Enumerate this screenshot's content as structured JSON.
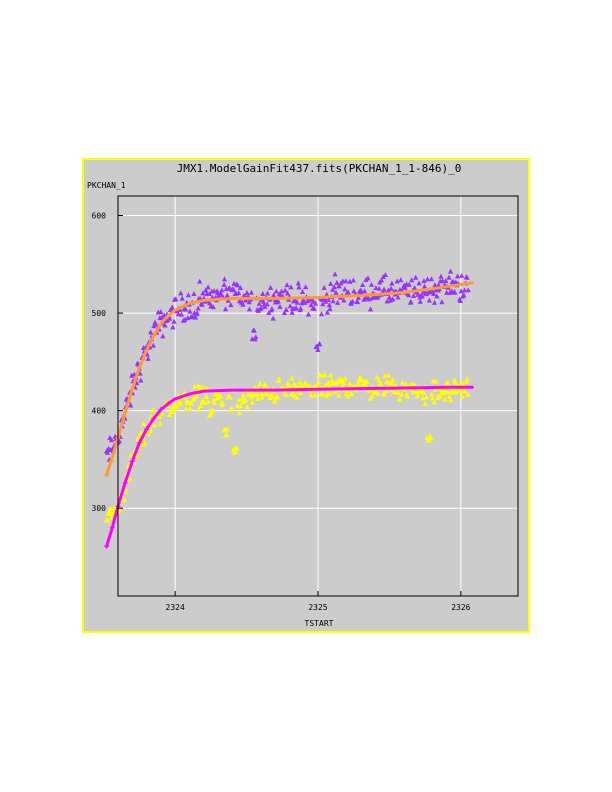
{
  "chart_data": {
    "type": "scatter",
    "title": "JMX1.ModelGainFit437.fits(PKCHAN_1_1-846)_0",
    "xlabel": "TSTART",
    "ylabel": "PKCHAN_1",
    "xlim": [
      2323.6,
      2326.4
    ],
    "ylim": [
      210,
      620
    ],
    "xticks": [
      2324,
      2325,
      2326
    ],
    "yticks": [
      300,
      400,
      500,
      600
    ],
    "grid": true,
    "colors": {
      "frame_border": "#ffff00",
      "frame_bg": "#cccccc",
      "grid": "#ffffff"
    },
    "series": [
      {
        "marker": "triangle",
        "color": "#9933ff",
        "anchors": [
          [
            2323.52,
            352
          ],
          [
            2323.58,
            366
          ],
          [
            2323.65,
            396
          ],
          [
            2323.72,
            432
          ],
          [
            2323.8,
            462
          ],
          [
            2323.88,
            486
          ],
          [
            2323.96,
            498
          ],
          [
            2324.05,
            506
          ],
          [
            2324.15,
            512
          ],
          [
            2324.3,
            518
          ],
          [
            2324.45,
            518
          ],
          [
            2324.55,
            508
          ],
          [
            2324.65,
            514
          ],
          [
            2324.75,
            516
          ],
          [
            2324.9,
            512
          ],
          [
            2325.0,
            508
          ],
          [
            2325.1,
            520
          ],
          [
            2325.2,
            524
          ],
          [
            2325.3,
            518
          ],
          [
            2325.4,
            524
          ],
          [
            2325.55,
            520
          ],
          [
            2325.7,
            522
          ],
          [
            2325.85,
            526
          ],
          [
            2325.95,
            528
          ],
          [
            2326.05,
            526
          ]
        ],
        "spread": 9,
        "dips": [
          [
            2324.55,
            478
          ],
          [
            2325.0,
            465
          ],
          [
            2324.15,
            500
          ]
        ]
      },
      {
        "marker": "triangle",
        "color": "#ffff00",
        "anchors": [
          [
            2323.52,
            290
          ],
          [
            2323.6,
            300
          ],
          [
            2323.68,
            338
          ],
          [
            2323.76,
            370
          ],
          [
            2323.86,
            395
          ],
          [
            2323.96,
            404
          ],
          [
            2324.05,
            410
          ],
          [
            2324.2,
            416
          ],
          [
            2324.35,
            412
          ],
          [
            2324.45,
            408
          ],
          [
            2324.55,
            416
          ],
          [
            2324.7,
            420
          ],
          [
            2324.9,
            422
          ],
          [
            2325.1,
            424
          ],
          [
            2325.25,
            426
          ],
          [
            2325.4,
            424
          ],
          [
            2325.55,
            424
          ],
          [
            2325.7,
            420
          ],
          [
            2325.85,
            418
          ],
          [
            2326.0,
            424
          ],
          [
            2326.05,
            422
          ]
        ],
        "spread": 7,
        "dips": [
          [
            2324.35,
            378
          ],
          [
            2324.42,
            358
          ],
          [
            2325.78,
            370
          ],
          [
            2324.25,
            396
          ]
        ]
      }
    ],
    "fits": [
      {
        "color": "#ff9933",
        "points": [
          [
            2323.52,
            334
          ],
          [
            2323.55,
            348
          ],
          [
            2323.6,
            372
          ],
          [
            2323.65,
            398
          ],
          [
            2323.7,
            422
          ],
          [
            2323.75,
            444
          ],
          [
            2323.8,
            462
          ],
          [
            2323.85,
            477
          ],
          [
            2323.9,
            489
          ],
          [
            2323.95,
            497
          ],
          [
            2324.0,
            503
          ],
          [
            2324.1,
            510
          ],
          [
            2324.2,
            513
          ],
          [
            2324.4,
            515
          ],
          [
            2324.7,
            515
          ],
          [
            2325.0,
            516
          ],
          [
            2325.3,
            518
          ],
          [
            2325.6,
            521
          ],
          [
            2325.9,
            527
          ],
          [
            2326.08,
            531
          ]
        ]
      },
      {
        "color": "#ff00ff",
        "points": [
          [
            2323.52,
            261
          ],
          [
            2323.56,
            280
          ],
          [
            2323.6,
            302
          ],
          [
            2323.65,
            326
          ],
          [
            2323.7,
            348
          ],
          [
            2323.75,
            367
          ],
          [
            2323.8,
            381
          ],
          [
            2323.85,
            392
          ],
          [
            2323.9,
            401
          ],
          [
            2323.95,
            407
          ],
          [
            2324.0,
            412
          ],
          [
            2324.1,
            417
          ],
          [
            2324.2,
            420
          ],
          [
            2324.4,
            421
          ],
          [
            2324.7,
            421
          ],
          [
            2325.0,
            422
          ],
          [
            2325.5,
            423
          ],
          [
            2325.9,
            424
          ],
          [
            2326.08,
            424
          ]
        ]
      }
    ]
  }
}
